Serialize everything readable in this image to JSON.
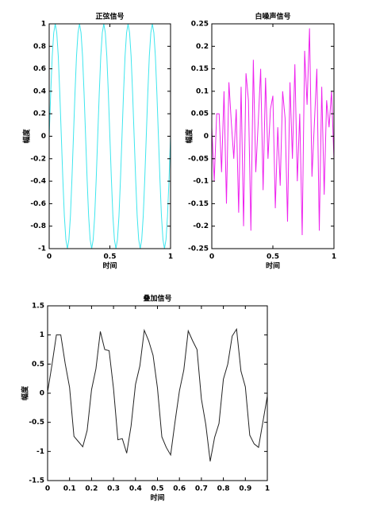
{
  "chart_data": [
    {
      "type": "line",
      "title": "正弦信号",
      "xlabel": "时间",
      "ylabel": "幅度",
      "x": [
        0,
        0.0125,
        0.025,
        0.0375,
        0.05,
        0.0625,
        0.075,
        0.0875,
        0.1,
        0.1125,
        0.125,
        0.1375,
        0.15,
        0.1625,
        0.175,
        0.1875,
        0.2,
        0.2125,
        0.225,
        0.2375,
        0.25,
        0.2625,
        0.275,
        0.2875,
        0.3,
        0.3125,
        0.325,
        0.3375,
        0.35,
        0.3625,
        0.375,
        0.3875,
        0.4,
        0.4125,
        0.425,
        0.4375,
        0.45,
        0.4625,
        0.475,
        0.4875,
        0.5,
        0.5125,
        0.525,
        0.5375,
        0.55,
        0.5625,
        0.575,
        0.5875,
        0.6,
        0.6125,
        0.625,
        0.6375,
        0.65,
        0.6625,
        0.675,
        0.6875,
        0.7,
        0.7125,
        0.725,
        0.7375,
        0.75,
        0.7625,
        0.775,
        0.7875,
        0.8,
        0.8125,
        0.825,
        0.8375,
        0.85,
        0.8625,
        0.875,
        0.8875,
        0.9,
        0.9125,
        0.925,
        0.9375,
        0.95,
        0.9625,
        0.975,
        0.9875,
        1
      ],
      "series": [
        {
          "color": "#3ee6ee",
          "values": [
            0,
            0.38,
            0.71,
            0.92,
            1,
            0.92,
            0.71,
            0.38,
            0,
            -0.38,
            -0.71,
            -0.92,
            -1,
            -0.92,
            -0.71,
            -0.38,
            0,
            0.38,
            0.71,
            0.92,
            1,
            0.92,
            0.71,
            0.38,
            0,
            -0.38,
            -0.71,
            -0.92,
            -1,
            -0.92,
            -0.71,
            -0.38,
            0,
            0.38,
            0.71,
            0.92,
            1,
            0.92,
            0.71,
            0.38,
            0,
            -0.38,
            -0.71,
            -0.92,
            -1,
            -0.92,
            -0.71,
            -0.38,
            0,
            0.38,
            0.71,
            0.92,
            1,
            0.92,
            0.71,
            0.38,
            0,
            -0.38,
            -0.71,
            -0.92,
            -1,
            -0.92,
            -0.71,
            -0.38,
            0,
            0.38,
            0.71,
            0.92,
            1,
            0.92,
            0.71,
            0.38,
            0,
            -0.38,
            -0.71,
            -0.92,
            -1,
            -0.92,
            -0.71,
            -0.38,
            0
          ]
        }
      ],
      "xlim": [
        0,
        1
      ],
      "xticks": [
        0,
        0.5,
        1
      ],
      "ylim": [
        -1,
        1
      ],
      "yticks": [
        -1,
        -0.8,
        -0.6,
        -0.4,
        -0.2,
        0,
        0.2,
        0.4,
        0.6,
        0.8,
        1
      ]
    },
    {
      "type": "line",
      "title": "白噪声信号",
      "xlabel": "时间",
      "ylabel": "幅度",
      "x": [
        0,
        0.02,
        0.04,
        0.06,
        0.08,
        0.1,
        0.12,
        0.14,
        0.16,
        0.18,
        0.2,
        0.22,
        0.24,
        0.26,
        0.28,
        0.3,
        0.32,
        0.34,
        0.36,
        0.38,
        0.4,
        0.42,
        0.44,
        0.46,
        0.48,
        0.5,
        0.52,
        0.54,
        0.56,
        0.58,
        0.6,
        0.62,
        0.64,
        0.66,
        0.68,
        0.7,
        0.72,
        0.74,
        0.76,
        0.78,
        0.8,
        0.82,
        0.84,
        0.86,
        0.88,
        0.9,
        0.92,
        0.94,
        0.96,
        0.98,
        1
      ],
      "series": [
        {
          "color": "#ee22ee",
          "values": [
            0.02,
            -0.1,
            0.05,
            0.05,
            -0.08,
            0.1,
            -0.15,
            0.12,
            0.03,
            -0.05,
            0.06,
            -0.17,
            0.11,
            -0.2,
            0.14,
            0.08,
            -0.21,
            0.17,
            -0.08,
            0.03,
            0.15,
            -0.12,
            0.13,
            -0.05,
            0.06,
            0.09,
            -0.16,
            0.02,
            -0.11,
            0.1,
            0.04,
            -0.19,
            0.12,
            -0.05,
            0.16,
            -0.1,
            0.05,
            -0.22,
            0.19,
            0.07,
            0.24,
            -0.09,
            0.03,
            0.15,
            -0.21,
            0.11,
            -0.13,
            0.08,
            0.02,
            0.1,
            -0.05
          ]
        }
      ],
      "xlim": [
        0,
        1
      ],
      "xticks": [
        0,
        0.5,
        1
      ],
      "ylim": [
        -0.25,
        0.25
      ],
      "yticks": [
        -0.25,
        -0.2,
        -0.15,
        -0.1,
        -0.05,
        0,
        0.05,
        0.1,
        0.15,
        0.2,
        0.25
      ]
    },
    {
      "type": "line",
      "title": "叠加信号",
      "xlabel": "时间",
      "ylabel": "幅度",
      "x": [
        0,
        0.02,
        0.04,
        0.06,
        0.08,
        0.1,
        0.12,
        0.14,
        0.16,
        0.18,
        0.2,
        0.22,
        0.24,
        0.26,
        0.28,
        0.3,
        0.32,
        0.34,
        0.36,
        0.38,
        0.4,
        0.42,
        0.44,
        0.46,
        0.48,
        0.5,
        0.52,
        0.54,
        0.56,
        0.58,
        0.6,
        0.62,
        0.64,
        0.66,
        0.68,
        0.7,
        0.72,
        0.74,
        0.76,
        0.78,
        0.8,
        0.82,
        0.84,
        0.86,
        0.88,
        0.9,
        0.92,
        0.94,
        0.96,
        0.98,
        1
      ],
      "series": [
        {
          "color": "#222222",
          "values": [
            0.02,
            0.49,
            1.0,
            1.0,
            0.51,
            0.1,
            -0.74,
            -0.83,
            -0.92,
            -0.64,
            0.06,
            0.42,
            1.06,
            0.75,
            0.73,
            0.08,
            -0.8,
            -0.78,
            -1.03,
            -0.56,
            0.15,
            0.47,
            1.08,
            0.9,
            0.65,
            0.09,
            -0.75,
            -0.93,
            -1.06,
            -0.49,
            0.04,
            0.4,
            1.07,
            0.9,
            0.75,
            -0.1,
            -0.54,
            -1.17,
            -0.76,
            -0.52,
            0.24,
            0.5,
            0.98,
            1.1,
            0.38,
            0.11,
            -0.72,
            -0.87,
            -0.93,
            -0.49,
            -0.05
          ]
        }
      ],
      "xlim": [
        0,
        1
      ],
      "xticks": [
        0,
        0.1,
        0.2,
        0.3,
        0.4,
        0.5,
        0.6,
        0.7,
        0.8,
        0.9,
        1
      ],
      "ylim": [
        -1.5,
        1.5
      ],
      "yticks": [
        -1.5,
        -1,
        -0.5,
        0,
        0.5,
        1,
        1.5
      ]
    }
  ]
}
